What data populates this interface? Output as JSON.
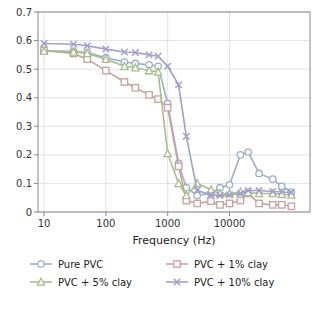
{
  "chart_data": {
    "type": "line",
    "x_label": "Frequency (Hz)",
    "log": "x",
    "grid": true,
    "legend": "bottom",
    "xlim": [
      8,
      200000
    ],
    "xticks": [
      10,
      100,
      1000,
      10000
    ],
    "ylim": [
      0,
      0.7
    ],
    "yticks": [
      0,
      0.1,
      0.2,
      0.3,
      0.4,
      0.5,
      0.6,
      0.7
    ],
    "x": [
      10,
      30,
      50,
      100,
      200,
      300,
      500,
      700,
      1000,
      1500,
      2000,
      3000,
      5000,
      7000,
      10000,
      15000,
      20000,
      30000,
      50000,
      70000,
      100000
    ],
    "series": [
      {
        "name": "Pure PVC",
        "color": "#9dafc8",
        "marker": "circle",
        "values": [
          0.565,
          0.562,
          0.558,
          0.54,
          0.525,
          0.52,
          0.515,
          0.51,
          0.38,
          0.17,
          0.085,
          0.058,
          0.065,
          0.085,
          0.095,
          0.2,
          0.21,
          0.135,
          0.115,
          0.09,
          0.07
        ]
      },
      {
        "name": "PVC + 1% clay",
        "color": "#c8a0a0",
        "marker": "square",
        "values": [
          0.565,
          0.555,
          0.535,
          0.495,
          0.455,
          0.435,
          0.41,
          0.395,
          0.365,
          0.16,
          0.04,
          0.03,
          0.038,
          0.025,
          0.03,
          0.04,
          0.065,
          0.03,
          0.025,
          0.025,
          0.02
        ]
      },
      {
        "name": "PVC + 5% clay",
        "color": "#a8bf88",
        "marker": "triangle",
        "values": [
          0.563,
          0.56,
          0.555,
          0.535,
          0.51,
          0.505,
          0.495,
          0.49,
          0.205,
          0.1,
          0.058,
          0.1,
          0.078,
          0.065,
          0.065,
          0.07,
          0.068,
          0.065,
          0.065,
          0.062,
          0.06
        ]
      },
      {
        "name": "PVC + 10% clay",
        "color": "#a0a0c8",
        "marker": "x",
        "values": [
          0.59,
          0.587,
          0.582,
          0.57,
          0.56,
          0.558,
          0.55,
          0.545,
          0.51,
          0.445,
          0.265,
          0.075,
          0.06,
          0.058,
          0.06,
          0.065,
          0.075,
          0.075,
          0.072,
          0.07,
          0.068
        ]
      }
    ]
  }
}
